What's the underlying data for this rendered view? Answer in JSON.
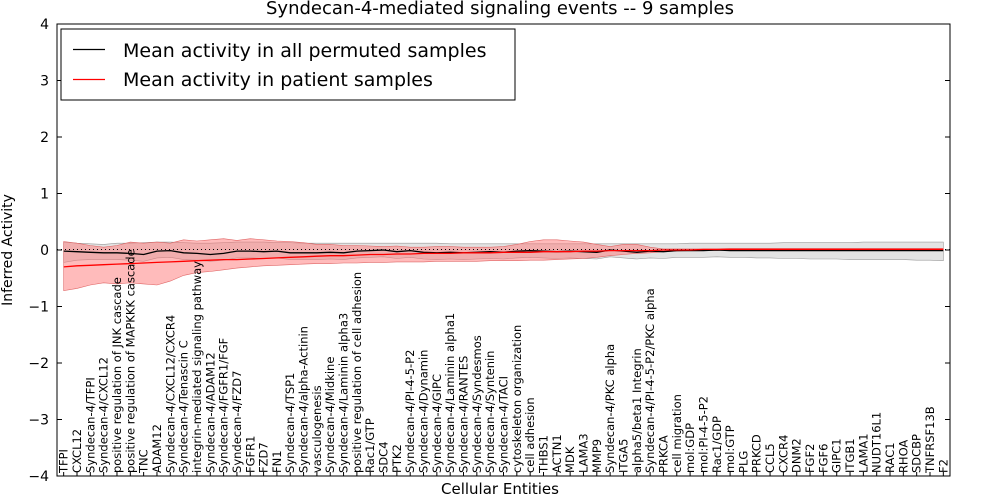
{
  "chart_data": {
    "type": "line",
    "title": "Syndecan-4-mediated signaling events -- 9 samples",
    "xlabel": "Cellular Entities",
    "ylabel": "Inferred Activity",
    "ylim": [
      -4,
      4
    ],
    "yticks": [
      -4,
      -3,
      -2,
      -1,
      0,
      1,
      2,
      3,
      4
    ],
    "legend_position": "top-left",
    "categories": [
      "TFPI",
      "CXCL12",
      "Syndecan-4/TFPI",
      "Syndecan-4/CXCL12",
      "positive regulation of JNK cascade",
      "positive regulation of MAPKKK cascade",
      "TNC",
      "ADAM12",
      "Syndecan-4/CXCL12/CXCR4",
      "Syndecan-4/Tenascin C",
      "integrin-mediated signaling pathway",
      "Syndecan-4/ADAM12",
      "Syndecan-4/FGFR1/FGF",
      "Syndecan-4/FZD7",
      "FGFR1",
      "FZD7",
      "FN1",
      "Syndecan-4/TSP1",
      "Syndecan-4/alpha-Actinin",
      "vasculogenesis",
      "Syndecan-4/Midkine",
      "Syndecan-4/Laminin alpha3",
      "positive regulation of cell adhesion",
      "Rac1/GTP",
      "SDC4",
      "PTK2",
      "Syndecan-4/PI-4-5-P2",
      "Syndecan-4/Dynamin",
      "Syndecan-4/GIPC",
      "Syndecan-4/Laminin alpha1",
      "Syndecan-4/RANTES",
      "Syndecan-4/Syndesmos",
      "Syndecan-4/Syntenin",
      "Syndecan-4/TACI",
      "cytoskeleton organization",
      "cell adhesion",
      "THBS1",
      "ACTN1",
      "MDK",
      "LAMA3",
      "MMP9",
      "Syndecan-4/PKC alpha",
      "ITGA5",
      "alpha5/beta1 Integrin",
      "Syndecan-4/PI-4-5-P2/PKC alpha",
      "PRKCA",
      "cell migration",
      "mol:GDP",
      "mol:PI-4-5-P2",
      "Rac1/GDP",
      "mol:GTP",
      "PLG",
      "PRKCD",
      "CCL5",
      "CXCR4",
      "DNM2",
      "FGF2",
      "FGF6",
      "GIPC1",
      "ITGB1",
      "LAMA1",
      "NUDT16L1",
      "RAC1",
      "RHOA",
      "SDCBP",
      "TNFRSF13B",
      "F2"
    ],
    "series": [
      {
        "name": "Mean activity in all permuted samples",
        "color": "#000000",
        "values": [
          -0.02,
          -0.03,
          -0.04,
          -0.05,
          -0.05,
          -0.06,
          -0.08,
          -0.02,
          -0.01,
          -0.05,
          -0.06,
          -0.08,
          -0.06,
          -0.02,
          -0.02,
          -0.03,
          -0.02,
          -0.05,
          -0.05,
          -0.05,
          -0.04,
          -0.05,
          -0.02,
          -0.01,
          0.0,
          -0.03,
          -0.01,
          -0.04,
          -0.05,
          -0.04,
          -0.05,
          -0.04,
          -0.03,
          -0.04,
          -0.02,
          -0.01,
          -0.02,
          -0.03,
          -0.02,
          -0.03,
          -0.04,
          0.0,
          -0.02,
          -0.04,
          -0.02,
          -0.03,
          -0.01,
          -0.01,
          -0.01,
          0.0,
          -0.01,
          -0.01,
          -0.01,
          -0.01,
          -0.01,
          -0.01,
          -0.01,
          -0.01,
          -0.01,
          -0.01,
          -0.01,
          -0.01,
          -0.01,
          -0.01,
          -0.01,
          -0.01,
          -0.01
        ],
        "lower": [
          -0.22,
          -0.18,
          -0.17,
          -0.17,
          -0.17,
          -0.18,
          -0.2,
          -0.14,
          -0.13,
          -0.17,
          -0.18,
          -0.2,
          -0.18,
          -0.14,
          -0.14,
          -0.15,
          -0.14,
          -0.17,
          -0.17,
          -0.17,
          -0.16,
          -0.17,
          -0.14,
          -0.13,
          -0.12,
          -0.15,
          -0.13,
          -0.16,
          -0.17,
          -0.16,
          -0.17,
          -0.16,
          -0.15,
          -0.16,
          -0.14,
          -0.13,
          -0.14,
          -0.15,
          -0.14,
          -0.15,
          -0.16,
          -0.12,
          -0.14,
          -0.16,
          -0.14,
          -0.15,
          -0.13,
          -0.13,
          -0.13,
          -0.12,
          -0.13,
          -0.13,
          -0.14,
          -0.14,
          -0.15,
          -0.15,
          -0.16,
          -0.16,
          -0.16,
          -0.17,
          -0.17,
          -0.17,
          -0.17,
          -0.17,
          -0.18,
          -0.18,
          -0.19
        ],
        "upper": [
          0.14,
          0.12,
          0.11,
          0.1,
          0.12,
          0.12,
          0.13,
          0.14,
          0.14,
          0.13,
          0.12,
          0.12,
          0.13,
          0.14,
          0.14,
          0.14,
          0.13,
          0.13,
          0.12,
          0.12,
          0.12,
          0.12,
          0.12,
          0.12,
          0.12,
          0.12,
          0.12,
          0.12,
          0.12,
          0.11,
          0.11,
          0.11,
          0.11,
          0.11,
          0.11,
          0.11,
          0.11,
          0.11,
          0.11,
          0.11,
          0.11,
          0.11,
          0.11,
          0.11,
          0.11,
          0.11,
          0.11,
          0.12,
          0.12,
          0.12,
          0.12,
          0.12,
          0.12,
          0.12,
          0.13,
          0.13,
          0.13,
          0.13,
          0.13,
          0.13,
          0.14,
          0.14,
          0.14,
          0.14,
          0.14,
          0.14,
          0.14
        ]
      },
      {
        "name": "Mean activity in patient samples",
        "color": "#ff0000",
        "values": [
          -0.3,
          -0.28,
          -0.27,
          -0.26,
          -0.25,
          -0.24,
          -0.23,
          -0.22,
          -0.21,
          -0.2,
          -0.19,
          -0.18,
          -0.17,
          -0.17,
          -0.16,
          -0.15,
          -0.14,
          -0.13,
          -0.12,
          -0.11,
          -0.1,
          -0.1,
          -0.09,
          -0.08,
          -0.08,
          -0.07,
          -0.07,
          -0.06,
          -0.06,
          -0.06,
          -0.05,
          -0.05,
          -0.05,
          -0.04,
          -0.04,
          -0.04,
          -0.03,
          -0.03,
          -0.03,
          -0.02,
          -0.02,
          -0.01,
          -0.01,
          -0.01,
          -0.01,
          0.0,
          0.0,
          0.0,
          0.01,
          0.01,
          0.01,
          0.01,
          0.01,
          0.01,
          0.01,
          0.01,
          0.01,
          0.01,
          0.01,
          0.01,
          0.01,
          0.01,
          0.01,
          0.01,
          0.01,
          0.01,
          0.01
        ],
        "lower": [
          -0.72,
          -0.68,
          -0.62,
          -0.58,
          -0.6,
          -0.58,
          -0.6,
          -0.62,
          -0.55,
          -0.45,
          -0.4,
          -0.38,
          -0.35,
          -0.32,
          -0.3,
          -0.28,
          -0.27,
          -0.26,
          -0.25,
          -0.24,
          -0.24,
          -0.23,
          -0.23,
          -0.22,
          -0.22,
          -0.21,
          -0.21,
          -0.21,
          -0.2,
          -0.2,
          -0.2,
          -0.2,
          -0.19,
          -0.19,
          -0.19,
          -0.18,
          -0.18,
          -0.17,
          -0.16,
          -0.15,
          -0.13,
          -0.1,
          -0.08,
          -0.06,
          -0.05,
          -0.03,
          -0.02,
          -0.01,
          -0.01,
          -0.01,
          0.0,
          0.0,
          0.0,
          0.0,
          0.0,
          0.0,
          0.0,
          0.0,
          0.0,
          0.0,
          0.0,
          0.0,
          0.0,
          0.0,
          0.0,
          0.0,
          0.0
        ],
        "upper": [
          0.15,
          0.12,
          0.08,
          0.05,
          0.08,
          0.14,
          0.12,
          0.14,
          0.12,
          0.18,
          0.16,
          0.18,
          0.2,
          0.17,
          0.2,
          0.18,
          0.16,
          0.15,
          0.13,
          0.1,
          0.1,
          0.08,
          0.08,
          0.07,
          0.06,
          0.07,
          0.05,
          0.05,
          0.06,
          0.06,
          0.05,
          0.05,
          0.05,
          0.06,
          0.1,
          0.15,
          0.18,
          0.18,
          0.16,
          0.14,
          0.1,
          0.06,
          0.1,
          0.1,
          0.05,
          0.02,
          0.02,
          0.02,
          0.02,
          0.02,
          0.03,
          0.03,
          0.03,
          0.03,
          0.03,
          0.03,
          0.03,
          0.03,
          0.03,
          0.03,
          0.03,
          0.03,
          0.03,
          0.03,
          0.03,
          0.03,
          0.03
        ]
      }
    ]
  }
}
